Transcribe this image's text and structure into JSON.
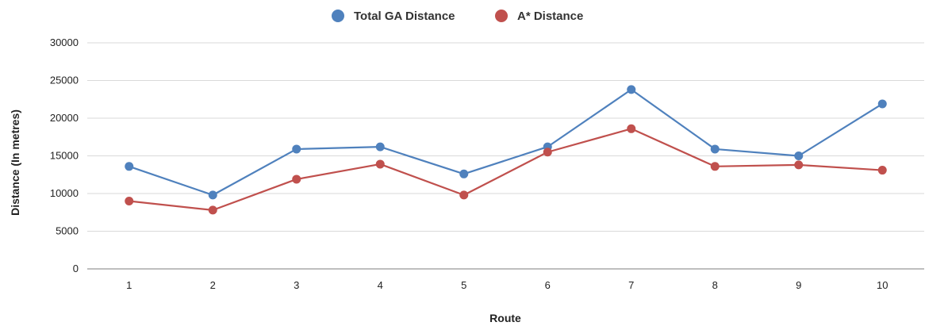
{
  "chart_data": {
    "type": "line",
    "xlabel": "Route",
    "ylabel": "Distance (In metres)",
    "categories": [
      "1",
      "2",
      "3",
      "4",
      "5",
      "6",
      "7",
      "8",
      "9",
      "10"
    ],
    "ylim": [
      0,
      30000
    ],
    "yticks": [
      "0",
      "5000",
      "10000",
      "15000",
      "20000",
      "25000",
      "30000"
    ],
    "grid": true,
    "legend_position": "top-center",
    "series": [
      {
        "name": "Total GA Distance",
        "color": "#4f81bd",
        "values": [
          13600,
          9800,
          15900,
          16200,
          12600,
          16200,
          23800,
          15900,
          15000,
          21900
        ]
      },
      {
        "name": "A* Distance",
        "color": "#c0504d",
        "values": [
          9000,
          7800,
          11900,
          13900,
          9800,
          15500,
          18600,
          13600,
          13800,
          13100
        ]
      }
    ]
  }
}
